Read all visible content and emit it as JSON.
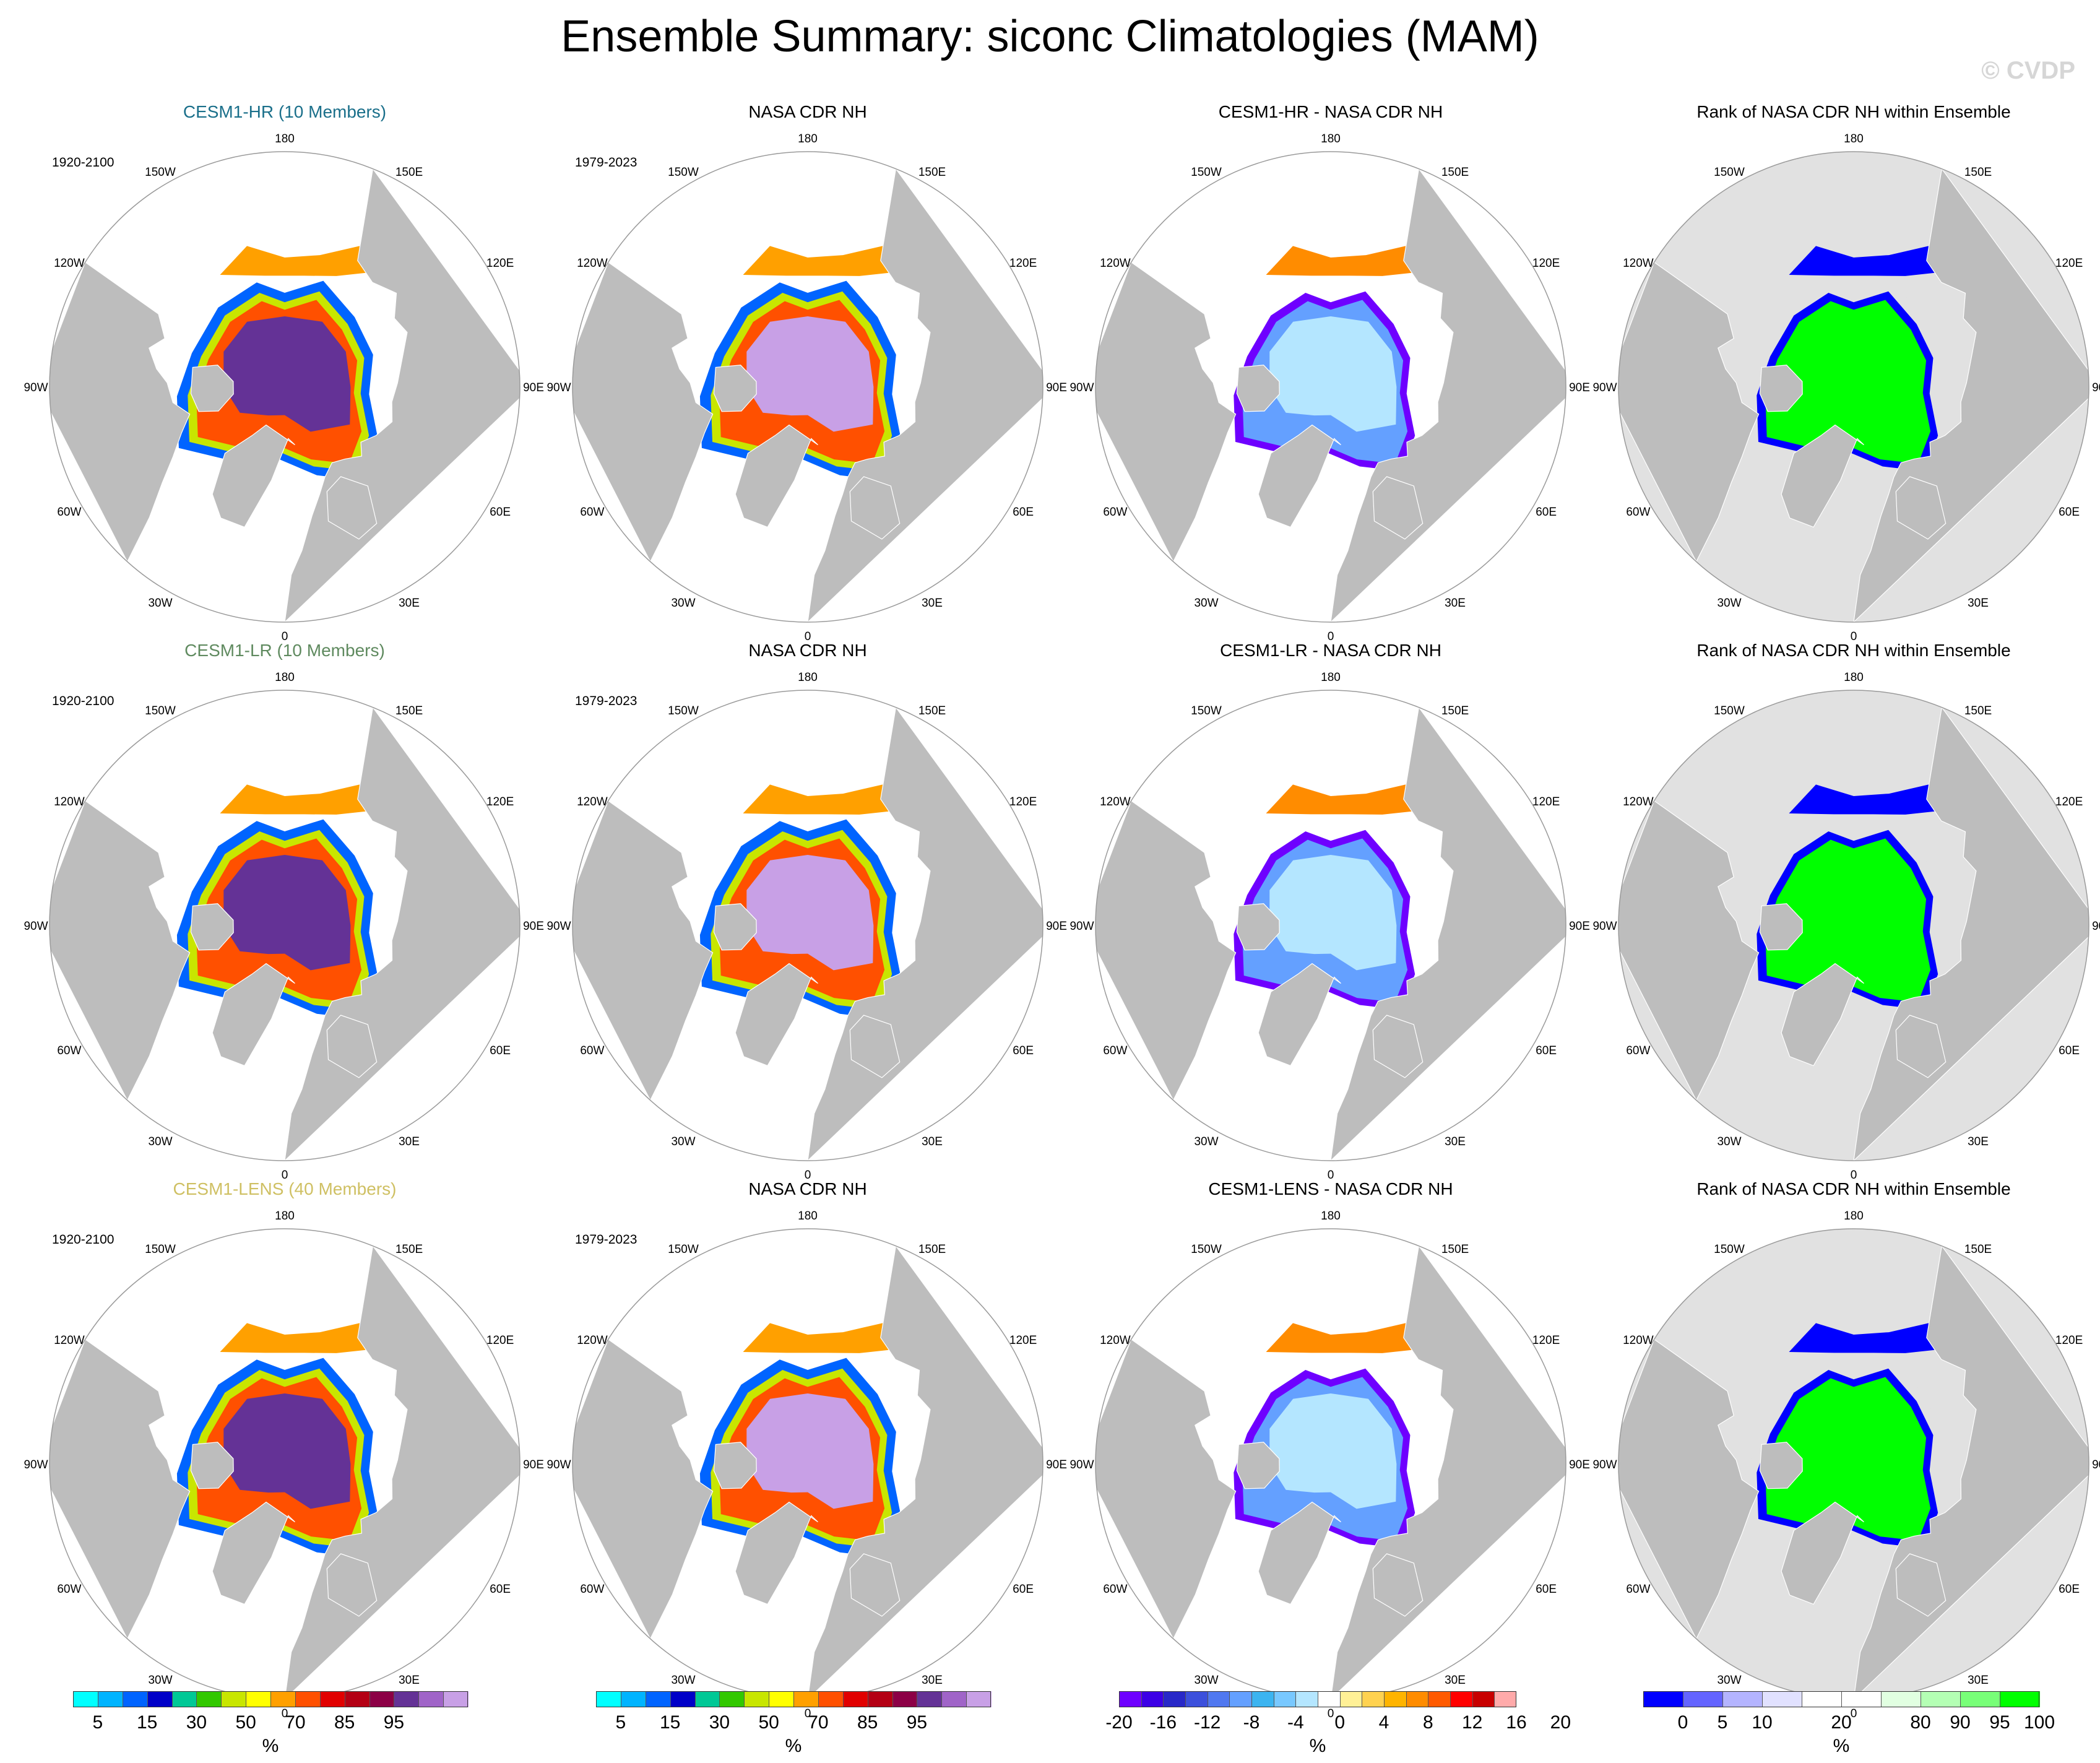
{
  "figure": {
    "title": "Ensemble Summary: siconc Climatologies (MAM)",
    "watermark": "© CVDP"
  },
  "lon_labels": [
    {
      "text": "180",
      "angle": 0
    },
    {
      "text": "150E",
      "angle": 30
    },
    {
      "text": "120E",
      "angle": 60
    },
    {
      "text": "90E",
      "angle": 90
    },
    {
      "text": "60E",
      "angle": 120
    },
    {
      "text": "30E",
      "angle": 150
    },
    {
      "text": "0",
      "angle": 180
    },
    {
      "text": "30W",
      "angle": 210
    },
    {
      "text": "60W",
      "angle": 240
    },
    {
      "text": "90W",
      "angle": 270
    },
    {
      "text": "120W",
      "angle": 300
    },
    {
      "text": "150W",
      "angle": 330
    }
  ],
  "colors": {
    "land": "#bdbdbd",
    "ocean": "#ffffff",
    "map_outline": "#9a9a9a",
    "rank_land": "#bdbdbd",
    "rank_ocean": "#e1e1e1",
    "hr_title": "#1a6f8a",
    "lr_title": "#5f8a5f",
    "lens_title": "#cfc063"
  },
  "colorbars": {
    "conc": {
      "colors": [
        "#00ffff",
        "#00b4ff",
        "#0064ff",
        "#0000c8",
        "#00c896",
        "#32c800",
        "#c8e600",
        "#ffff00",
        "#ffa000",
        "#ff5000",
        "#e10000",
        "#b40014",
        "#8c0046",
        "#643296",
        "#a064c8",
        "#c8a0e6"
      ],
      "ticks": [
        {
          "label": "5",
          "idx": 1
        },
        {
          "label": "15",
          "idx": 3
        },
        {
          "label": "30",
          "idx": 5
        },
        {
          "label": "50",
          "idx": 7
        },
        {
          "label": "70",
          "idx": 9
        },
        {
          "label": "85",
          "idx": 11
        },
        {
          "label": "95",
          "idx": 13
        }
      ],
      "unit": "%"
    },
    "diff": {
      "colors": [
        "#6e00ff",
        "#3c00e6",
        "#2828c8",
        "#3c50dc",
        "#5078f0",
        "#64a0ff",
        "#3cb4f0",
        "#78c8ff",
        "#b4e6ff",
        "#ffffff",
        "#fff096",
        "#ffd250",
        "#ffb400",
        "#ff8c00",
        "#ff5a00",
        "#ff0000",
        "#c80000",
        "#ffaaaa"
      ],
      "ticks": [
        {
          "label": "-20",
          "idx": 0
        },
        {
          "label": "-16",
          "idx": 2
        },
        {
          "label": "-12",
          "idx": 4
        },
        {
          "label": "-8",
          "idx": 6
        },
        {
          "label": "-4",
          "idx": 8
        },
        {
          "label": "0",
          "idx": 10
        },
        {
          "label": "4",
          "idx": 12
        },
        {
          "label": "8",
          "idx": 14
        },
        {
          "label": "12",
          "idx": 16
        },
        {
          "label": "16",
          "idx": 18
        },
        {
          "label": "20",
          "idx": 20
        }
      ],
      "tick_base": "edge",
      "unit": "%"
    },
    "rank": {
      "colors": [
        "#0000ff",
        "#6464ff",
        "#b4b4ff",
        "#e1e1ff",
        "#ffffff",
        "#ffffff",
        "#e1ffe1",
        "#b4ffb4",
        "#78ff78",
        "#00ff00"
      ],
      "ticks": [
        {
          "label": "0",
          "idx": 1
        },
        {
          "label": "5",
          "idx": 2
        },
        {
          "label": "10",
          "idx": 3
        },
        {
          "label": "20",
          "idx": 5
        },
        {
          "label": "80",
          "idx": 7
        },
        {
          "label": "90",
          "idx": 8
        },
        {
          "label": "95",
          "idx": 9
        },
        {
          "label": "100",
          "idx": 10
        }
      ],
      "tick_base": "edge",
      "unit": "%"
    }
  },
  "rows": [
    {
      "panels": [
        {
          "title": "CESM1-HR (10 Members)",
          "title_color": "#1a6f8a",
          "period": "1920-2100",
          "kind": "model"
        },
        {
          "title": "NASA CDR NH",
          "period": "1979-2023",
          "kind": "obs"
        },
        {
          "title": "CESM1-HR - NASA CDR NH",
          "period": "",
          "kind": "diff"
        },
        {
          "title": "Rank of NASA CDR NH within Ensemble",
          "period": "",
          "kind": "rank"
        }
      ]
    },
    {
      "panels": [
        {
          "title": "CESM1-LR (10 Members)",
          "title_color": "#5f8a5f",
          "period": "1920-2100",
          "kind": "model"
        },
        {
          "title": "NASA CDR NH",
          "period": "1979-2023",
          "kind": "obs"
        },
        {
          "title": "CESM1-LR - NASA CDR NH",
          "period": "",
          "kind": "diff"
        },
        {
          "title": "Rank of NASA CDR NH within Ensemble",
          "period": "",
          "kind": "rank"
        }
      ]
    },
    {
      "panels": [
        {
          "title": "CESM1-LENS (40 Members)",
          "title_color": "#cfc063",
          "period": "1920-2100",
          "kind": "model"
        },
        {
          "title": "NASA CDR NH",
          "period": "1979-2023",
          "kind": "obs"
        },
        {
          "title": "CESM1-LENS - NASA CDR NH",
          "period": "",
          "kind": "diff"
        },
        {
          "title": "Rank of NASA CDR NH within Ensemble",
          "period": "",
          "kind": "rank"
        }
      ]
    }
  ]
}
